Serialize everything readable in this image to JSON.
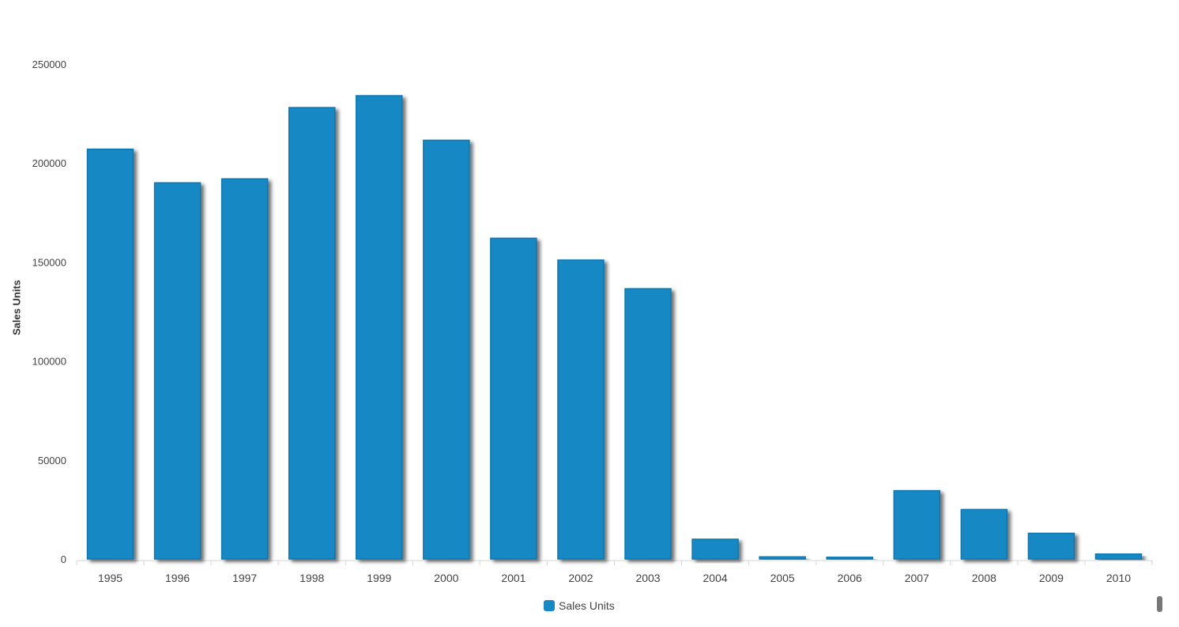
{
  "chart_data": {
    "type": "bar",
    "categories": [
      "1995",
      "1996",
      "1997",
      "1998",
      "1999",
      "2000",
      "2001",
      "2002",
      "2003",
      "2004",
      "2005",
      "2006",
      "2007",
      "2008",
      "2009",
      "2010"
    ],
    "series": [
      {
        "name": "Sales Units",
        "values": [
          207000,
          190000,
          192000,
          228000,
          234000,
          211500,
          162000,
          151000,
          136500,
          10000,
          1200,
          1000,
          34500,
          25000,
          13000,
          2500
        ]
      }
    ],
    "ylabel": "Sales Units",
    "xlabel": "",
    "ylim": [
      0,
      250000
    ],
    "yticks": [
      0,
      50000,
      100000,
      150000,
      200000,
      250000
    ],
    "grid": false,
    "legend_position": "bottom-center",
    "colors": {
      "bar_fill": "#1589C4",
      "bar_stroke": "#0E76AE",
      "axis": "#d6d6d6",
      "text": "#444444"
    }
  }
}
